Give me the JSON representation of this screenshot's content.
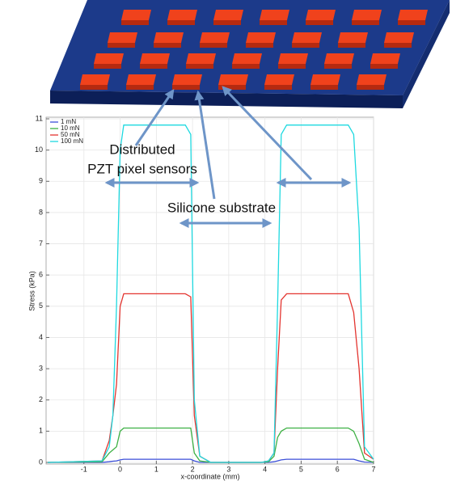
{
  "chart_data": {
    "type": "line",
    "x_label": "x-coordinate (mm)",
    "y_label": "Stress (kPa)",
    "annotations": [
      "Distributed",
      "PZT pixel sensors",
      "Silicone substrate"
    ],
    "x": [
      -2,
      -0.5,
      -0.3,
      -0.2,
      -0.1,
      0,
      0.1,
      0.3,
      1.8,
      1.95,
      2.05,
      2.2,
      2.5,
      3.9,
      4.1,
      4.25,
      4.35,
      4.45,
      4.6,
      6.3,
      6.45,
      6.6,
      6.75,
      7
    ],
    "series": [
      {
        "name": "1 mN",
        "color": "#3b4fd8",
        "values": [
          0,
          0,
          0.02,
          0.04,
          0.05,
          0.08,
          0.1,
          0.1,
          0.1,
          0.1,
          0.05,
          0,
          0,
          0,
          0,
          0.02,
          0.05,
          0.08,
          0.1,
          0.1,
          0.1,
          0.05,
          0.01,
          0
        ]
      },
      {
        "name": "10 mN",
        "color": "#3cb043",
        "values": [
          0,
          0.02,
          0.3,
          0.4,
          0.5,
          1,
          1.1,
          1.1,
          1.1,
          1.1,
          0.3,
          0.05,
          0,
          0,
          0.02,
          0.2,
          0.8,
          1.0,
          1.1,
          1.1,
          1.0,
          0.6,
          0.1,
          0
        ]
      },
      {
        "name": "50 mN",
        "color": "#e3342f",
        "values": [
          0,
          0.05,
          0.7,
          1.5,
          2.5,
          5,
          5.4,
          5.4,
          5.4,
          5.3,
          1.5,
          0.2,
          0,
          0,
          0.05,
          0.3,
          3,
          5.2,
          5.4,
          5.4,
          4.8,
          3,
          0.3,
          0.1
        ]
      },
      {
        "name": "100 mN",
        "color": "#1ed9e0",
        "values": [
          0,
          0.05,
          0.5,
          1.5,
          5,
          10,
          10.8,
          10.8,
          10.8,
          10.5,
          2,
          0.2,
          0,
          0,
          0.05,
          0.3,
          5,
          10.5,
          10.8,
          10.8,
          10.5,
          7.5,
          0.5,
          0.1
        ]
      }
    ],
    "xlim": [
      -2,
      7
    ],
    "xticks": [
      -1,
      0,
      1,
      2,
      3,
      4,
      5,
      6,
      7
    ],
    "ylim": [
      0,
      11
    ],
    "yticks": [
      0,
      1,
      2,
      3,
      4,
      5,
      6,
      7,
      8,
      9,
      10,
      11
    ],
    "grid": true,
    "legend": "upper-left"
  }
}
